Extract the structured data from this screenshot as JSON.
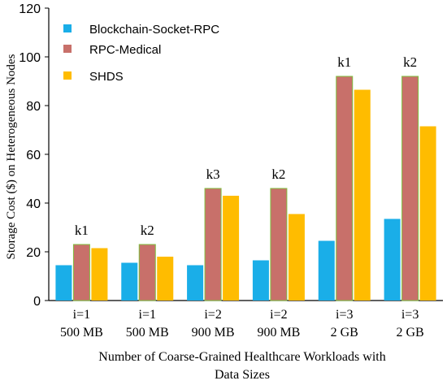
{
  "chart_data": {
    "type": "bar",
    "xlabel_lines": [
      "Number of Coarse-Grained Healthcare Workloads with",
      "Data Sizes"
    ],
    "ylabel": "Storage Cost ($) on Heterogeneous Nodes",
    "ylim": [
      0,
      120
    ],
    "yticks": [
      0,
      20,
      40,
      60,
      80,
      100,
      120
    ],
    "categories": [
      {
        "line1": "i=1",
        "line2": "500 MB",
        "annotation": "k1"
      },
      {
        "line1": "i=1",
        "line2": "500 MB",
        "annotation": "k2"
      },
      {
        "line1": "i=2",
        "line2": "900 MB",
        "annotation": "k3"
      },
      {
        "line1": "i=2",
        "line2": "900 MB",
        "annotation": "k2"
      },
      {
        "line1": "i=3",
        "line2": "2 GB",
        "annotation": "k1"
      },
      {
        "line1": "i=3",
        "line2": "2 GB",
        "annotation": "k2"
      }
    ],
    "series": [
      {
        "name": "Blockchain-Socket-RPC",
        "color": "#1aaee8",
        "values": [
          14.5,
          15.5,
          14.5,
          16.5,
          24.5,
          33.5
        ]
      },
      {
        "name": "RPC-Medical",
        "color": "#c8706a",
        "values": [
          23,
          23,
          46,
          46,
          92,
          92
        ]
      },
      {
        "name": "SHDS",
        "color": "#ffbc00",
        "values": [
          21.5,
          18,
          43,
          35.5,
          86.5,
          71.5
        ]
      }
    ],
    "legend_position": "top-left",
    "grid": false
  }
}
